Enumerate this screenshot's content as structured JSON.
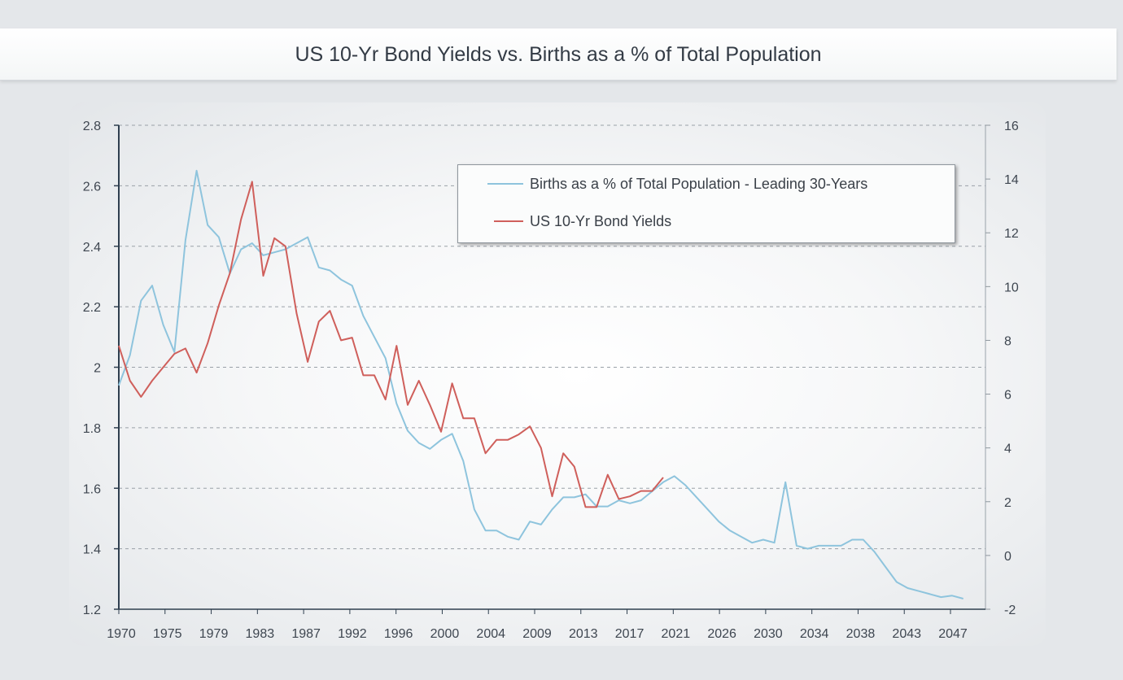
{
  "title": "US 10-Yr Bond Yields vs. Births as a % of Total Population",
  "legend": {
    "items": [
      {
        "label": "Births as a % of Total Population - Leading 30-Years",
        "color": "#8ec4dd"
      },
      {
        "label": "US 10-Yr Bond Yields",
        "color": "#cf5f5b"
      }
    ]
  },
  "chart_data": {
    "type": "line",
    "title": "US 10-Yr Bond Yields vs. Births as a % of Total Population",
    "x_tick_labels": [
      "1970",
      "1975",
      "1979",
      "1983",
      "1987",
      "1992",
      "1996",
      "2000",
      "2004",
      "2009",
      "2013",
      "2017",
      "2021",
      "2026",
      "2030",
      "2034",
      "2038",
      "2043",
      "2047"
    ],
    "xlim": [
      1970,
      2048
    ],
    "y_left": {
      "ticks": [
        "2.8",
        "2.6",
        "2.4",
        "2.2",
        "2",
        "1.8",
        "1.6",
        "1.4",
        "1.2"
      ],
      "lim": [
        1.2,
        2.8
      ]
    },
    "y_right": {
      "ticks": [
        "16",
        "14",
        "12",
        "10",
        "8",
        "6",
        "4",
        "2",
        "0",
        "-2"
      ],
      "lim": [
        -2,
        16
      ]
    },
    "grid": true,
    "legend_position": "top-right",
    "series": [
      {
        "name": "Births as a % of Total Population - Leading 30-Years",
        "axis": "left",
        "color": "#8ec4dd",
        "x": [
          1970,
          1971,
          1972,
          1973,
          1974,
          1975,
          1976,
          1977,
          1978,
          1979,
          1980,
          1981,
          1982,
          1983,
          1984,
          1985,
          1986,
          1987,
          1988,
          1989,
          1990,
          1991,
          1992,
          1993,
          1994,
          1995,
          1996,
          1997,
          1998,
          1999,
          2000,
          2001,
          2002,
          2003,
          2004,
          2005,
          2006,
          2007,
          2008,
          2009,
          2010,
          2011,
          2012,
          2013,
          2014,
          2015,
          2016,
          2017,
          2018,
          2019,
          2020,
          2021,
          2022,
          2023,
          2024,
          2025,
          2026,
          2027,
          2028,
          2029,
          2030,
          2031,
          2032,
          2033,
          2034,
          2035,
          2036,
          2037,
          2038,
          2039,
          2040,
          2041,
          2042,
          2043,
          2044,
          2045,
          2046
        ],
        "values": [
          1.94,
          2.04,
          2.22,
          2.27,
          2.14,
          2.05,
          2.42,
          2.65,
          2.47,
          2.43,
          2.31,
          2.39,
          2.41,
          2.37,
          2.38,
          2.39,
          2.41,
          2.43,
          2.33,
          2.32,
          2.29,
          2.27,
          2.17,
          2.1,
          2.03,
          1.88,
          1.79,
          1.75,
          1.73,
          1.76,
          1.78,
          1.69,
          1.53,
          1.46,
          1.46,
          1.44,
          1.43,
          1.49,
          1.48,
          1.53,
          1.57,
          1.57,
          1.58,
          1.54,
          1.54,
          1.56,
          1.55,
          1.56,
          1.59,
          1.62,
          1.64,
          1.61,
          1.57,
          1.53,
          1.49,
          1.46,
          1.44,
          1.42,
          1.43,
          1.42,
          1.62,
          1.41,
          1.4,
          1.41,
          1.41,
          1.41,
          1.43,
          1.43,
          1.39,
          1.34,
          1.29,
          1.27,
          1.26,
          1.25,
          1.24,
          1.245,
          1.235
        ]
      },
      {
        "name": "US 10-Yr Bond Yields",
        "axis": "right",
        "color": "#cf5f5b",
        "x": [
          1970,
          1971,
          1972,
          1973,
          1974,
          1975,
          1976,
          1977,
          1978,
          1979,
          1980,
          1981,
          1982,
          1983,
          1984,
          1985,
          1986,
          1987,
          1988,
          1989,
          1990,
          1991,
          1992,
          1993,
          1994,
          1995,
          1996,
          1997,
          1998,
          1999,
          2000,
          2001,
          2002,
          2003,
          2004,
          2005,
          2006,
          2007,
          2008,
          2009,
          2010,
          2011,
          2012,
          2013,
          2014,
          2015,
          2016,
          2017,
          2018,
          2019
        ],
        "values": [
          7.8,
          6.5,
          5.9,
          6.5,
          7.0,
          7.5,
          7.7,
          6.8,
          7.9,
          9.3,
          10.5,
          12.5,
          13.9,
          10.4,
          11.8,
          11.5,
          9.0,
          7.2,
          8.7,
          9.1,
          8.0,
          8.1,
          6.7,
          6.7,
          5.8,
          7.8,
          5.6,
          6.5,
          5.6,
          4.6,
          6.4,
          5.1,
          5.1,
          3.8,
          4.3,
          4.3,
          4.5,
          4.8,
          4.0,
          2.2,
          3.8,
          3.3,
          1.8,
          1.8,
          3.0,
          2.1,
          2.2,
          2.4,
          2.4,
          2.9
        ]
      }
    ]
  }
}
